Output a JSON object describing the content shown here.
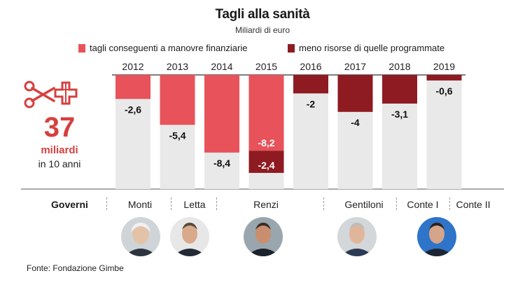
{
  "title": "Tagli alla sanità",
  "subtitle": "Miliardi di euro",
  "legend": {
    "a": "tagli conseguenti a manovre finanziarie",
    "b": "meno risorse di quelle programmate"
  },
  "colors": {
    "a": "#e8525a",
    "b": "#8e1b21",
    "bg": "#e9e9e9",
    "accent": "#d6403f"
  },
  "summary": {
    "number": "37",
    "unit": "miliardi",
    "period": "in 10 anni"
  },
  "governments_label": "Governi",
  "governments": [
    "Monti",
    "Letta",
    "Renzi",
    "Gentiloni",
    "Conte I",
    "Conte II"
  ],
  "source": "Fonte: Fondazione Gimbe",
  "icon": "scissors-health-cross-icon",
  "chart_data": {
    "type": "bar",
    "categories": [
      "2012",
      "2013",
      "2014",
      "2015",
      "2016",
      "2017",
      "2018",
      "2019"
    ],
    "ylim": [
      -12,
      0
    ],
    "series": [
      {
        "name": "tagli conseguenti a manovre finanziarie",
        "values": [
          -2.6,
          -5.4,
          -8.4,
          -8.2,
          0,
          0,
          0,
          0
        ]
      },
      {
        "name": "meno risorse di quelle programmate",
        "values": [
          0,
          0,
          0,
          -2.4,
          -2,
          -4,
          -3.1,
          -0.6
        ]
      }
    ],
    "labels": [
      "-2,6",
      "-5,4",
      "-8,4",
      "-8,2",
      "-2,4",
      "-2",
      "-4",
      "-3,1",
      "-0,6"
    ]
  }
}
